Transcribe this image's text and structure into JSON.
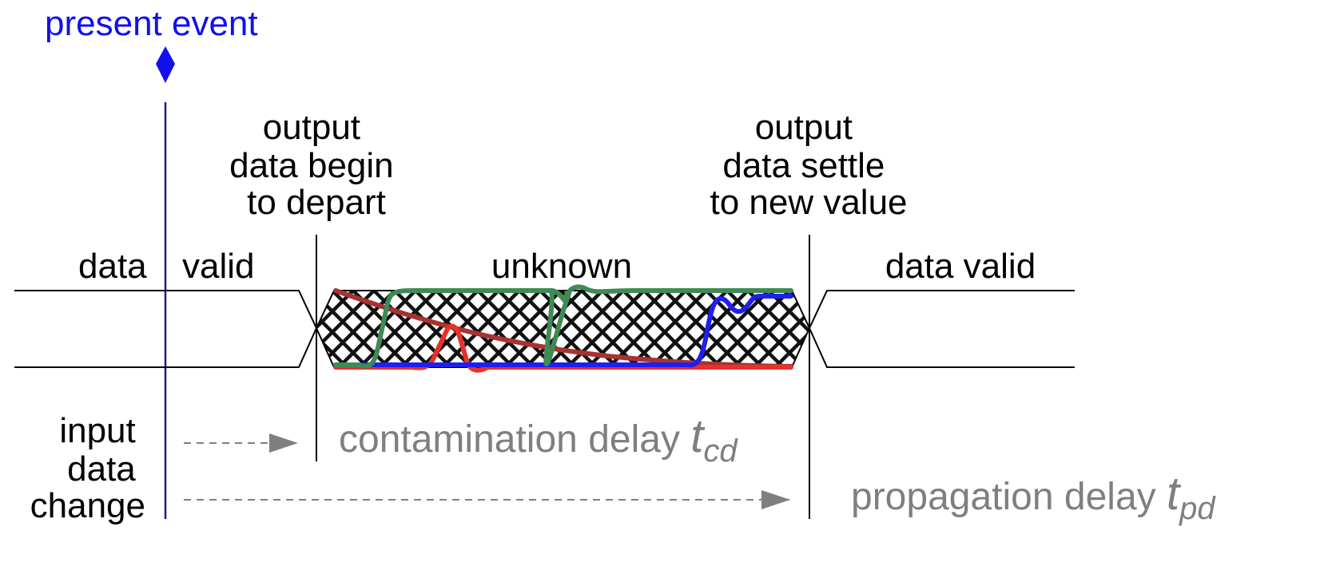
{
  "present_event": {
    "label": "present event"
  },
  "begin_label": {
    "lines": [
      "output",
      "data begin",
      "to depart"
    ]
  },
  "settle_label": {
    "lines": [
      "output",
      "data settle",
      "to new value"
    ]
  },
  "regions": {
    "left_data": "data",
    "left_valid": "valid",
    "middle": "unknown",
    "right": "data valid"
  },
  "input_change": {
    "lines": [
      "input",
      "data",
      "change"
    ]
  },
  "contamination": {
    "text": "contamination delay ",
    "symbol": "t",
    "subscript": "cd"
  },
  "propagation": {
    "text": "propagation delay ",
    "symbol": "t",
    "subscript": "pd"
  },
  "colors": {
    "event_blue": "#1010ee",
    "vertical_blue": "#1a1a8c",
    "label_grey": "#7f7f7f",
    "arrow_grey": "#7f7f7f",
    "trace_dark_red": "#a83232",
    "trace_red": "#e8312a",
    "trace_blue": "#1f1fee",
    "trace_green": "#3f8a55"
  }
}
